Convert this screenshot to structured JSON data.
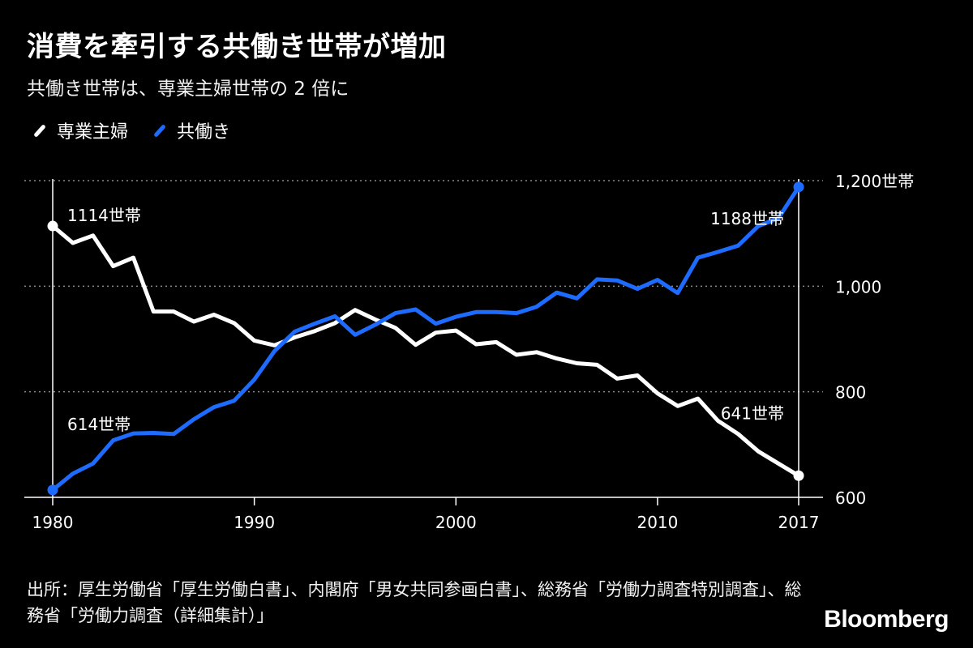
{
  "header": {
    "title": "消費を牽引する共働き世帯が増加",
    "subtitle": "共働き世帯は、専業主婦世帯の 2 倍に"
  },
  "legend": [
    {
      "label": "専業主婦",
      "color": "#ffffff"
    },
    {
      "label": "共働き",
      "color": "#1e6bff"
    }
  ],
  "footer": {
    "source": "出所：厚生労働省「厚生労働白書」、内閣府「男女共同参画白書」、総務省「労働力調査特別調査」、総務省「労働力調査（詳細集計）」",
    "brand": "Bloomberg"
  },
  "chart_data": {
    "type": "line",
    "title": "消費を牽引する共働き世帯が増加",
    "subtitle": "共働き世帯は、専業主婦世帯の 2 倍に",
    "x": [
      1980,
      1981,
      1982,
      1983,
      1984,
      1985,
      1986,
      1987,
      1988,
      1989,
      1990,
      1991,
      1992,
      1993,
      1994,
      1995,
      1996,
      1997,
      1998,
      1999,
      2000,
      2001,
      2002,
      2003,
      2004,
      2005,
      2006,
      2007,
      2008,
      2009,
      2010,
      2011,
      2012,
      2013,
      2014,
      2015,
      2016,
      2017
    ],
    "x_ticks": [
      1980,
      1990,
      2000,
      2010,
      2017
    ],
    "x_tick_labels": [
      "1980",
      "1990",
      "2000",
      "2010",
      "2017"
    ],
    "ylim": [
      600,
      1200
    ],
    "y_ticks": [
      600,
      800,
      1000,
      1200
    ],
    "y_tick_labels": [
      "600",
      "800",
      "1,000",
      "1,200世帯"
    ],
    "grid": "horizontal-dotted",
    "series": [
      {
        "name": "専業主婦",
        "color": "#ffffff",
        "values": [
          1114,
          1082,
          1096,
          1038,
          1054,
          952,
          952,
          933,
          946,
          930,
          897,
          888,
          903,
          915,
          930,
          955,
          937,
          921,
          889,
          912,
          916,
          890,
          894,
          870,
          875,
          863,
          854,
          851,
          825,
          831,
          797,
          773,
          787,
          745,
          720,
          687,
          664,
          641
        ]
      },
      {
        "name": "共働き",
        "color": "#1e6bff",
        "values": [
          614,
          645,
          664,
          708,
          721,
          722,
          720,
          748,
          771,
          783,
          823,
          877,
          914,
          929,
          943,
          908,
          927,
          949,
          956,
          929,
          942,
          951,
          951,
          949,
          961,
          988,
          977,
          1013,
          1011,
          995,
          1012,
          987,
          1054,
          1065,
          1077,
          1114,
          1129,
          1188
        ]
      }
    ],
    "annotations": [
      {
        "text": "1114世帯",
        "x": 1980,
        "y": 1114,
        "series": "専業主婦"
      },
      {
        "text": "614世帯",
        "x": 1980,
        "y": 614,
        "series": "共働き"
      },
      {
        "text": "1188世帯",
        "x": 2017,
        "y": 1188,
        "series": "共働き"
      },
      {
        "text": "641世帯",
        "x": 2017,
        "y": 641,
        "series": "専業主婦"
      }
    ]
  }
}
